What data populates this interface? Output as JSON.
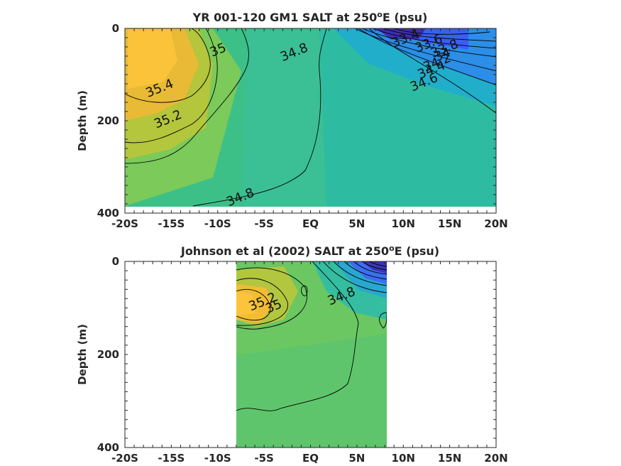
{
  "chart_data": [
    {
      "type": "contour",
      "title": "YR 001-120 GM1 SALT at 250",
      "title_sup": "o",
      "title_suffix": "E (psu)",
      "ylabel": "Depth (m)",
      "xlabel": "",
      "x_tick_labels": [
        "-20S",
        "-15S",
        "-10S",
        "-5S",
        "EQ",
        "5N",
        "10N",
        "15N",
        "20N"
      ],
      "x_tick_values": [
        -20,
        -15,
        -10,
        -5,
        0,
        5,
        10,
        15,
        20
      ],
      "y_tick_labels": [
        "0",
        "200",
        "400"
      ],
      "y_tick_values": [
        0,
        200,
        400
      ],
      "xlim": [
        -20,
        20
      ],
      "ylim": [
        0,
        400
      ],
      "y_reversed": true,
      "colormap": "parula",
      "data_extent_x": [
        -20,
        20
      ],
      "data_extent_y": [
        0,
        390
      ],
      "contour_labels": [
        {
          "text": "35.4",
          "x": -16.1,
          "y": 138
        },
        {
          "text": "35.2",
          "x": -15.2,
          "y": 205
        },
        {
          "text": "35",
          "x": -9.8,
          "y": 55
        },
        {
          "text": "34.8",
          "x": -1.6,
          "y": 60
        },
        {
          "text": "34.8",
          "x": -7.4,
          "y": 374
        },
        {
          "text": "33.4",
          "x": 10.4,
          "y": 30
        },
        {
          "text": "33.6",
          "x": 12.9,
          "y": 41
        },
        {
          "text": "33.8",
          "x": 14.6,
          "y": 52
        },
        {
          "text": "34",
          "x": 14.4,
          "y": 65
        },
        {
          "text": "34.2",
          "x": 13.8,
          "y": 82
        },
        {
          "text": "34.4",
          "x": 13.2,
          "y": 98
        },
        {
          "text": "34.6",
          "x": 12.4,
          "y": 125
        }
      ]
    },
    {
      "type": "contour",
      "title": "Johnson et al (2002) SALT at 250",
      "title_sup": "o",
      "title_suffix": "E (psu)",
      "ylabel": "Depth (m)",
      "xlabel": "",
      "x_tick_labels": [
        "-20S",
        "-15S",
        "-10S",
        "-5S",
        "EQ",
        "5N",
        "10N",
        "15N",
        "20N"
      ],
      "x_tick_values": [
        -20,
        -15,
        -10,
        -5,
        0,
        5,
        10,
        15,
        20
      ],
      "y_tick_labels": [
        "0",
        "200",
        "400"
      ],
      "y_tick_values": [
        0,
        200,
        400
      ],
      "xlim": [
        -20,
        20
      ],
      "ylim": [
        0,
        400
      ],
      "y_reversed": true,
      "colormap": "parula",
      "data_extent_x": [
        -8,
        8.2
      ],
      "data_extent_y": [
        0,
        400
      ],
      "contour_labels": [
        {
          "text": "35.2",
          "x": -5.0,
          "y": 95
        },
        {
          "text": "35",
          "x": -3.8,
          "y": 105
        },
        {
          "text": "34.8",
          "x": 3.5,
          "y": 83
        }
      ]
    }
  ]
}
